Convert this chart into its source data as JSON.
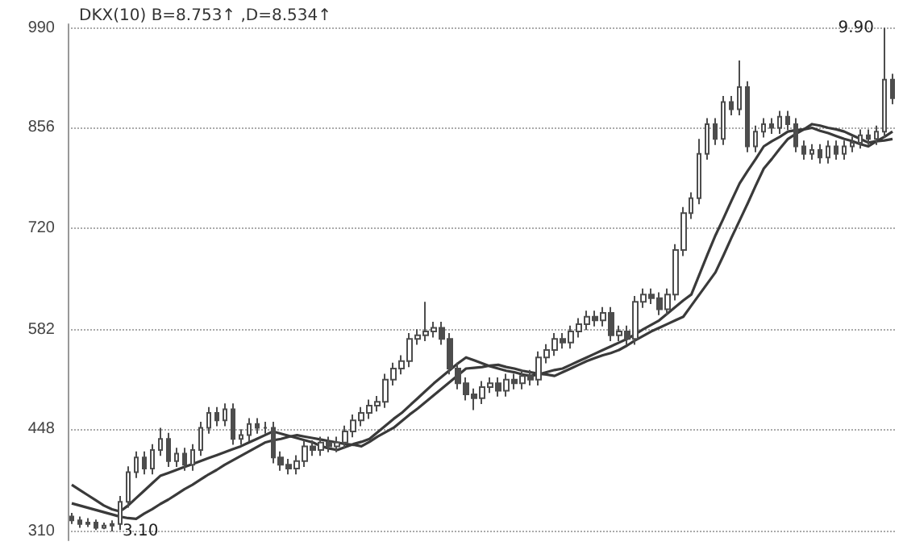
{
  "chart_data": {
    "type": "candlestick",
    "title": "DKX(10) B=8.753↑ ,D=8.534↑",
    "categories": [
      null,
      null,
      null,
      null,
      null,
      null,
      null,
      null,
      null,
      null,
      null,
      null,
      null,
      null,
      null,
      null,
      null,
      null,
      null,
      null,
      null,
      null,
      null,
      null,
      null,
      null,
      null,
      null,
      null,
      null,
      null,
      null,
      null,
      null,
      null,
      null,
      null,
      null,
      null,
      null,
      null,
      null,
      null,
      null,
      null,
      null,
      null,
      null,
      null,
      null,
      null,
      null,
      null,
      null,
      null,
      null,
      null,
      null,
      null,
      null,
      null,
      null,
      null,
      null,
      null,
      null,
      null,
      null,
      null,
      null,
      null,
      null,
      null,
      null,
      null,
      null,
      null,
      null,
      null,
      null,
      null,
      null,
      null,
      null,
      null,
      null,
      null,
      null,
      null,
      null,
      null,
      null,
      null,
      null,
      null,
      null,
      null,
      null,
      null,
      null,
      null,
      null,
      null
    ],
    "ylim": [
      298,
      995
    ],
    "yticks": [
      310,
      448,
      582,
      720,
      856,
      990
    ],
    "tick_labels": "y",
    "grid": "y",
    "annotations": [
      "9.90",
      "3.10"
    ],
    "series": [
      {
        "type": "candlestick",
        "color": "#4d4d4d",
        "ohlc": [
          [
            330,
            335,
            320,
            325
          ],
          [
            325,
            330,
            315,
            320
          ],
          [
            320,
            328,
            316,
            322
          ],
          [
            322,
            326,
            312,
            315
          ],
          [
            315,
            322,
            313,
            318
          ],
          [
            318,
            325,
            310,
            320
          ],
          [
            320,
            358,
            312,
            350
          ],
          [
            350,
            398,
            342,
            390
          ],
          [
            390,
            418,
            382,
            410
          ],
          [
            410,
            418,
            387,
            395
          ],
          [
            395,
            428,
            387,
            420
          ],
          [
            420,
            450,
            412,
            435
          ],
          [
            435,
            443,
            397,
            405
          ],
          [
            405,
            423,
            397,
            415
          ],
          [
            415,
            423,
            392,
            400
          ],
          [
            400,
            428,
            392,
            420
          ],
          [
            420,
            458,
            412,
            450
          ],
          [
            450,
            478,
            442,
            470
          ],
          [
            470,
            478,
            452,
            460
          ],
          [
            460,
            483,
            452,
            475
          ],
          [
            475,
            483,
            427,
            435
          ],
          [
            435,
            448,
            427,
            440
          ],
          [
            440,
            463,
            432,
            455
          ],
          [
            455,
            463,
            442,
            450
          ],
          [
            450,
            458,
            442,
            450
          ],
          [
            450,
            458,
            402,
            410
          ],
          [
            410,
            418,
            392,
            400
          ],
          [
            400,
            408,
            387,
            395
          ],
          [
            395,
            413,
            387,
            405
          ],
          [
            405,
            433,
            397,
            425
          ],
          [
            425,
            433,
            412,
            420
          ],
          [
            420,
            438,
            412,
            430
          ],
          [
            430,
            438,
            417,
            425
          ],
          [
            425,
            438,
            417,
            430
          ],
          [
            430,
            453,
            422,
            445
          ],
          [
            445,
            468,
            437,
            460
          ],
          [
            460,
            478,
            452,
            470
          ],
          [
            470,
            488,
            462,
            480
          ],
          [
            480,
            493,
            472,
            485
          ],
          [
            485,
            523,
            477,
            515
          ],
          [
            515,
            538,
            507,
            530
          ],
          [
            530,
            548,
            522,
            540
          ],
          [
            540,
            578,
            532,
            570
          ],
          [
            570,
            583,
            562,
            575
          ],
          [
            575,
            620,
            567,
            580
          ],
          [
            580,
            593,
            572,
            585
          ],
          [
            585,
            593,
            562,
            570
          ],
          [
            570,
            578,
            522,
            530
          ],
          [
            530,
            538,
            502,
            510
          ],
          [
            510,
            518,
            487,
            495
          ],
          [
            495,
            503,
            474,
            490
          ],
          [
            490,
            513,
            482,
            505
          ],
          [
            505,
            518,
            497,
            510
          ],
          [
            510,
            518,
            492,
            500
          ],
          [
            500,
            523,
            492,
            515
          ],
          [
            515,
            523,
            502,
            510
          ],
          [
            510,
            528,
            502,
            520
          ],
          [
            520,
            528,
            507,
            515
          ],
          [
            515,
            553,
            507,
            545
          ],
          [
            545,
            563,
            537,
            555
          ],
          [
            555,
            578,
            547,
            570
          ],
          [
            570,
            578,
            557,
            565
          ],
          [
            565,
            588,
            557,
            580
          ],
          [
            580,
            598,
            572,
            590
          ],
          [
            590,
            608,
            582,
            600
          ],
          [
            600,
            608,
            587,
            595
          ],
          [
            595,
            613,
            587,
            605
          ],
          [
            605,
            613,
            567,
            575
          ],
          [
            575,
            588,
            567,
            580
          ],
          [
            580,
            588,
            562,
            570
          ],
          [
            570,
            628,
            562,
            620
          ],
          [
            620,
            638,
            612,
            630
          ],
          [
            630,
            638,
            617,
            625
          ],
          [
            625,
            633,
            602,
            610
          ],
          [
            610,
            638,
            602,
            630
          ],
          [
            630,
            698,
            622,
            690
          ],
          [
            690,
            748,
            682,
            740
          ],
          [
            740,
            768,
            732,
            760
          ],
          [
            760,
            840,
            752,
            820
          ],
          [
            820,
            868,
            812,
            860
          ],
          [
            860,
            868,
            832,
            840
          ],
          [
            840,
            898,
            832,
            890
          ],
          [
            890,
            898,
            872,
            880
          ],
          [
            880,
            946,
            872,
            910
          ],
          [
            910,
            918,
            822,
            830
          ],
          [
            830,
            858,
            822,
            850
          ],
          [
            850,
            868,
            842,
            860
          ],
          [
            860,
            868,
            847,
            855
          ],
          [
            855,
            878,
            847,
            870
          ],
          [
            870,
            878,
            852,
            860
          ],
          [
            860,
            868,
            822,
            830
          ],
          [
            830,
            838,
            812,
            820
          ],
          [
            820,
            833,
            812,
            825
          ],
          [
            825,
            833,
            807,
            815
          ],
          [
            815,
            838,
            807,
            830
          ],
          [
            830,
            838,
            812,
            820
          ],
          [
            820,
            838,
            812,
            830
          ],
          [
            830,
            843,
            822,
            835
          ],
          [
            835,
            853,
            827,
            845
          ],
          [
            845,
            853,
            832,
            840
          ],
          [
            840,
            858,
            832,
            850
          ],
          [
            850,
            990,
            842,
            920
          ],
          [
            920,
            928,
            887,
            895
          ]
        ]
      },
      {
        "type": "line",
        "color": "#3a3a3a",
        "values": [
          373,
          366,
          359,
          352,
          345,
          340,
          337,
          345,
          355,
          365,
          375,
          385,
          389,
          393,
          397,
          401,
          405,
          409,
          413,
          417,
          421,
          425,
          430,
          435,
          440,
          445,
          442,
          439,
          436,
          433,
          430,
          425,
          422,
          420,
          424,
          428,
          431,
          435,
          444,
          453,
          462,
          470,
          480,
          490,
          500,
          510,
          519,
          528,
          537,
          545,
          541,
          537,
          533,
          530,
          527,
          525,
          522,
          520,
          522,
          525,
          528,
          530,
          535,
          540,
          545,
          550,
          555,
          560,
          565,
          570,
          576,
          583,
          589,
          595,
          604,
          613,
          622,
          630,
          657,
          684,
          710,
          733,
          757,
          780,
          797,
          813,
          830,
          837,
          843,
          850,
          852,
          853,
          855,
          851,
          848,
          844,
          840,
          837,
          833,
          830,
          837,
          843,
          850
        ]
      },
      {
        "type": "line",
        "color": "#3a3a3a",
        "values": [
          348,
          345,
          342,
          339,
          336,
          333,
          330,
          328,
          327,
          334,
          340,
          347,
          353,
          360,
          367,
          373,
          380,
          387,
          393,
          400,
          406,
          412,
          418,
          424,
          430,
          433,
          435,
          438,
          440,
          438,
          436,
          434,
          432,
          430,
          428,
          427,
          425,
          431,
          438,
          444,
          450,
          459,
          468,
          476,
          485,
          494,
          503,
          512,
          521,
          530,
          531,
          532,
          534,
          535,
          532,
          530,
          527,
          525,
          523,
          522,
          520,
          525,
          530,
          535,
          540,
          544,
          548,
          551,
          555,
          561,
          568,
          574,
          580,
          585,
          590,
          595,
          600,
          615,
          630,
          645,
          660,
          683,
          707,
          730,
          753,
          777,
          800,
          813,
          827,
          840,
          847,
          853,
          860,
          858,
          855,
          853,
          850,
          845,
          840,
          835,
          837,
          838,
          840
        ]
      }
    ]
  }
}
